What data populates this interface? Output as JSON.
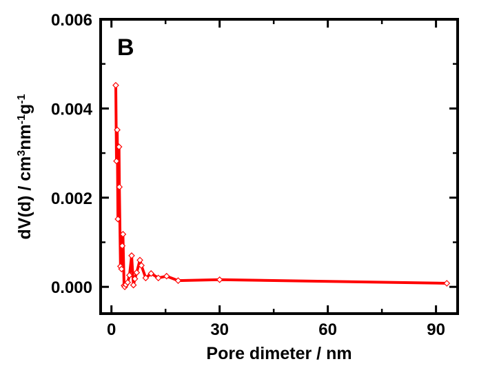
{
  "chart_data": {
    "type": "line",
    "panel_label": "B",
    "xlabel": "Pore dimeter / nm",
    "ylabel": {
      "main": "dV(d) / cm",
      "sup1": "3",
      "mid1": "nm",
      "sup2": "-1",
      "mid2": "g",
      "sup3": "-1"
    },
    "xlim": [
      -3,
      96
    ],
    "ylim": [
      -0.0006,
      0.006
    ],
    "x_ticks": [
      0,
      30,
      60,
      90
    ],
    "y_ticks": [
      0.0,
      0.002,
      0.004,
      0.006
    ],
    "x_tick_labels": [
      "0",
      "30",
      "60",
      "90"
    ],
    "y_tick_labels": [
      "0.000",
      "0.002",
      "0.004",
      "0.006"
    ],
    "grid": false,
    "legend": "none",
    "colors": {
      "line": "#ff0000",
      "marker_fill": "#ffffff",
      "marker_stroke": "#ff0000",
      "axis": "#000000"
    },
    "series": [
      {
        "marker": "diamond",
        "x": [
          1.2,
          1.4,
          1.6,
          1.8,
          2.1,
          2.2,
          2.5,
          2.8,
          3.0,
          3.2,
          3.5,
          3.7,
          4.0,
          4.5,
          5.0,
          5.6,
          6.1,
          6.5,
          7.0,
          7.9,
          8.3,
          9.5,
          11.0,
          13.0,
          15.3,
          18.5,
          30.0,
          93.0
        ],
        "y": [
          0.00452,
          0.00282,
          0.00352,
          0.00152,
          0.00314,
          0.00224,
          0.00046,
          0.0004,
          0.00092,
          0.00118,
          3e-05,
          0.0,
          5e-05,
          0.0001,
          0.00026,
          0.0007,
          4e-05,
          0.00018,
          0.00032,
          0.0006,
          0.00048,
          0.0002,
          0.0003,
          0.0002,
          0.00024,
          0.00014,
          0.00016,
          8e-05
        ]
      }
    ]
  }
}
